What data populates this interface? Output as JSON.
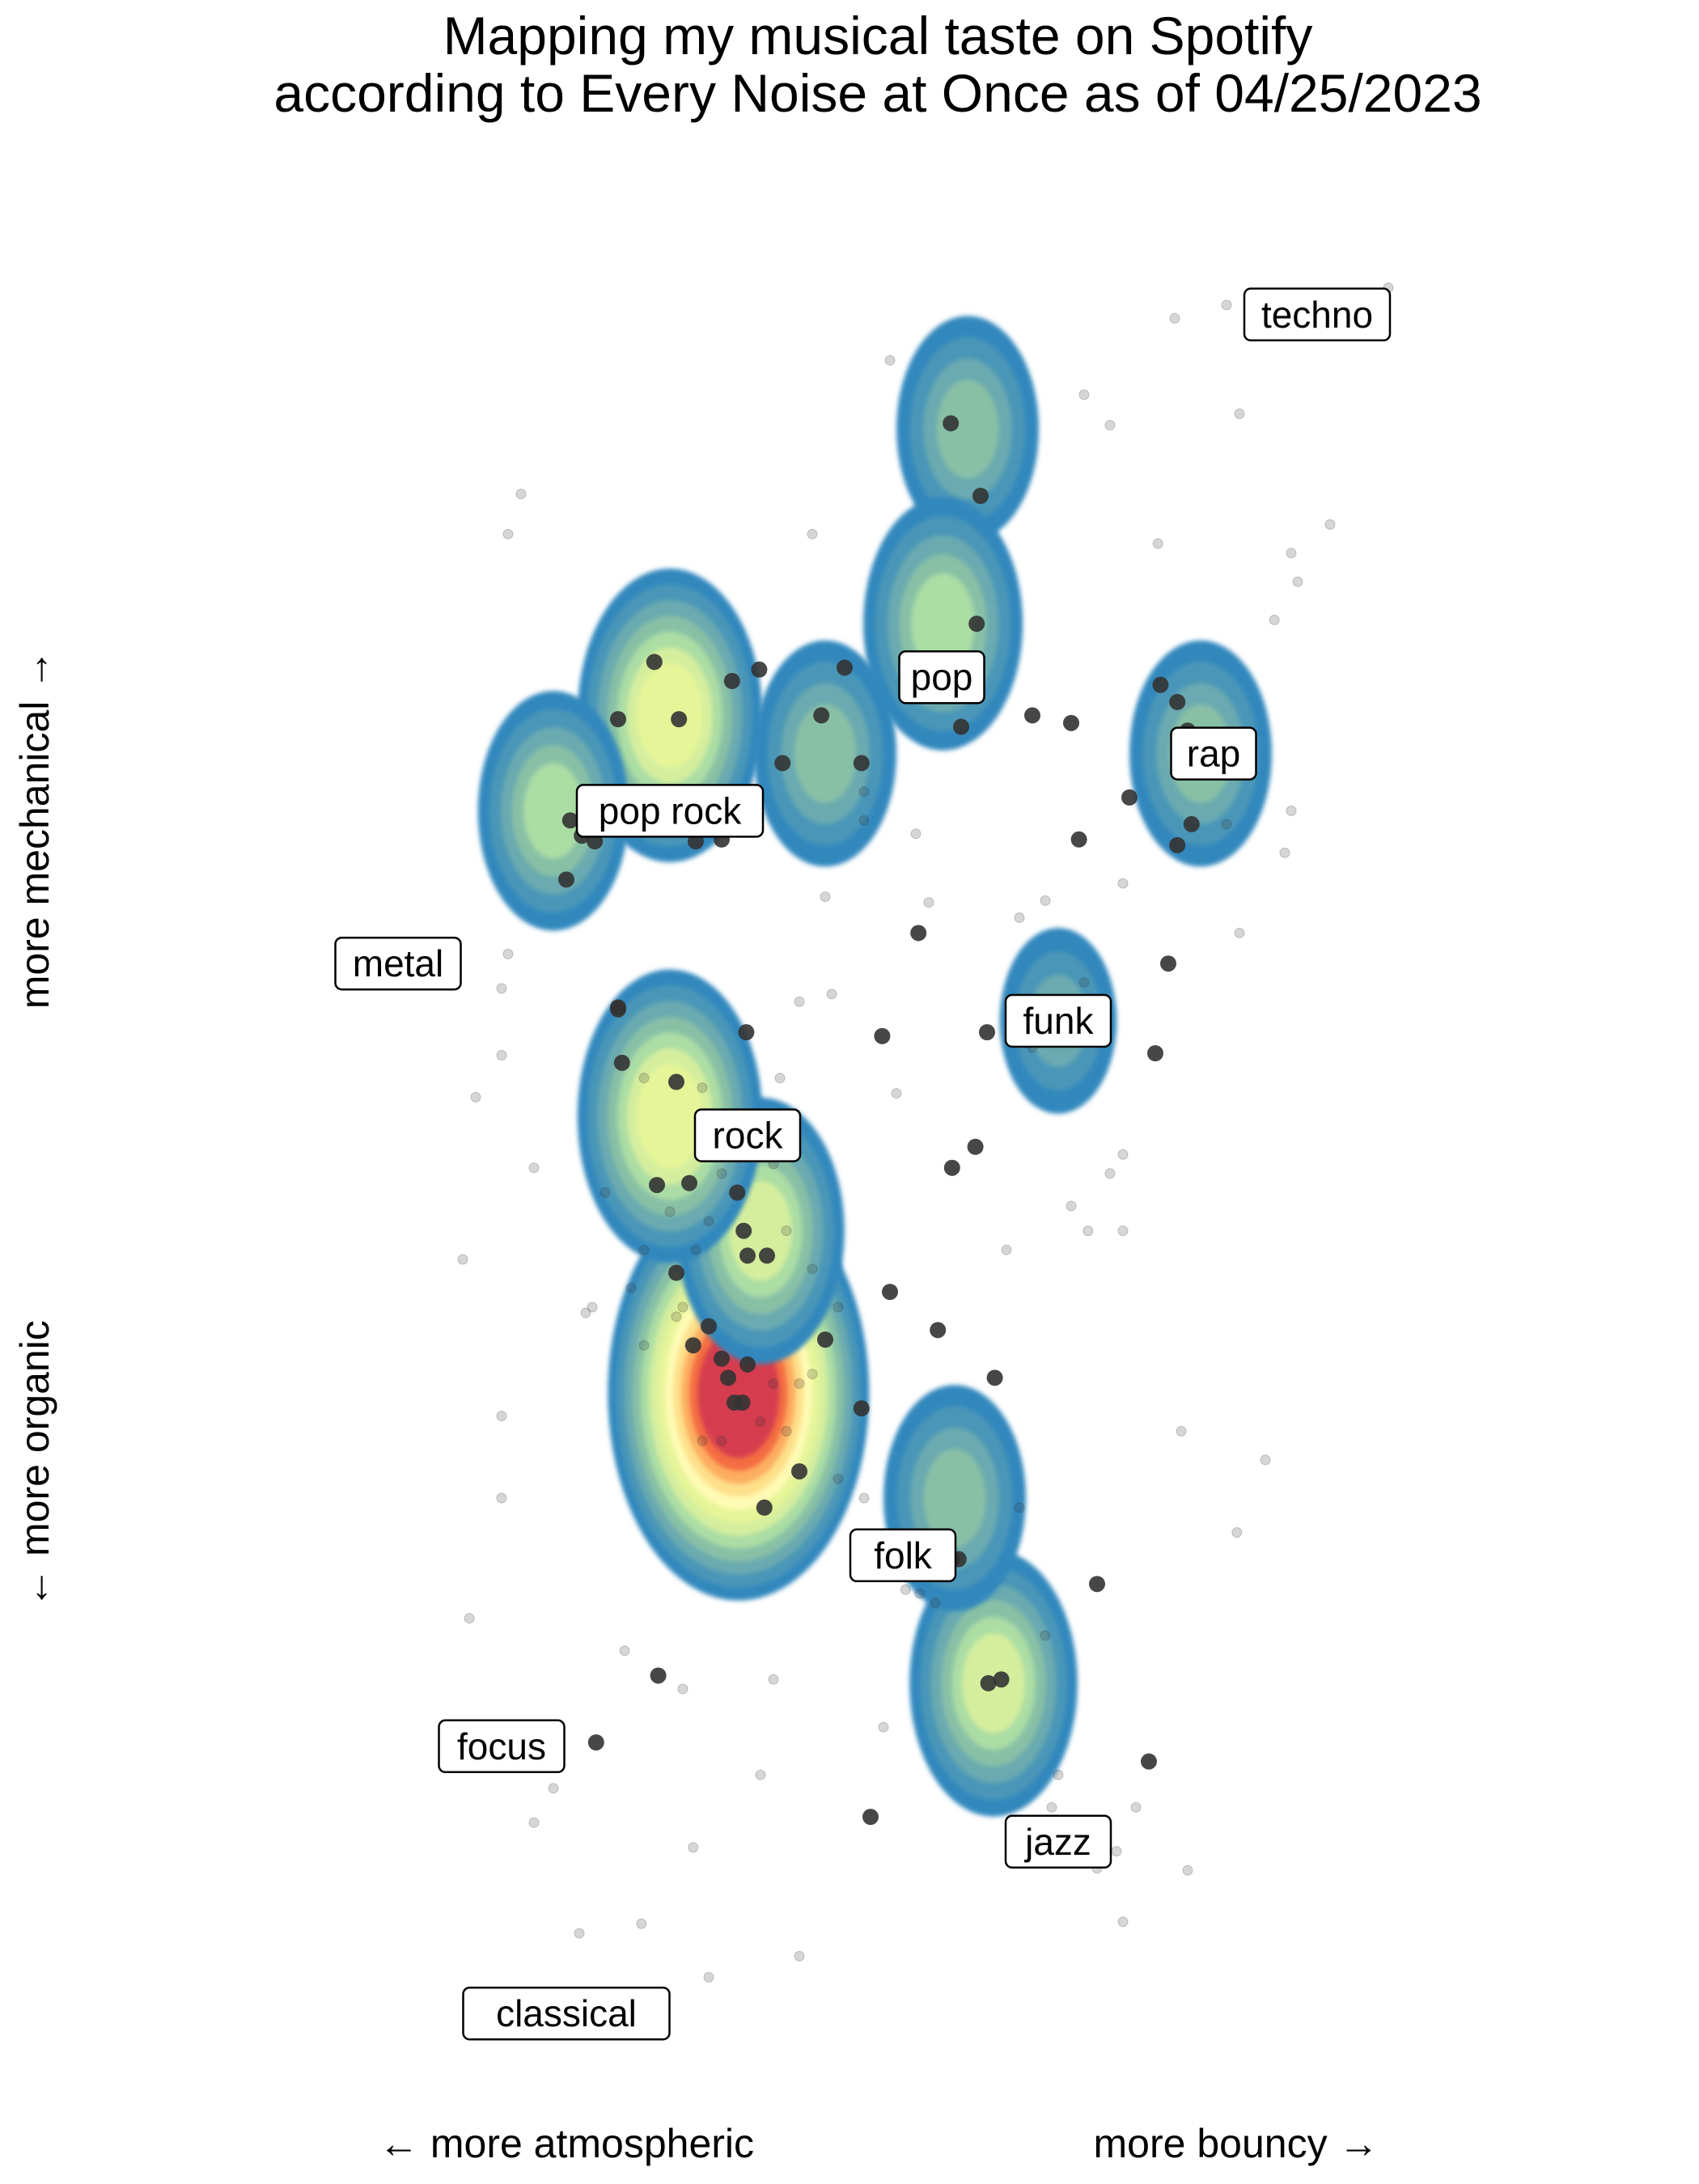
{
  "chart_data": {
    "type": "scatter",
    "subtype": "2d-density-contour-with-points",
    "title": [
      "Mapping my musical taste on Spotify",
      "according to Every Noise at Once as of 04/25/2023"
    ],
    "xlabel": {
      "left": "← more atmospheric",
      "right": "more bouncy →"
    },
    "ylabel": {
      "bottom": "← more organic",
      "top": "more mechanical →"
    },
    "xlim": [
      0,
      1
    ],
    "ylim": [
      0,
      1
    ],
    "grid": false,
    "legend": "none",
    "density_palette": [
      "#3288bd",
      "#4a96b8",
      "#6aaab0",
      "#88c0a6",
      "#abdda4",
      "#d5ee9e",
      "#e6f598",
      "#fffbb5",
      "#fee08b",
      "#fdae61",
      "#f46d43",
      "#d53e4f"
    ],
    "genre_labels": [
      {
        "label": "techno",
        "x": 0.83,
        "y": 0.92
      },
      {
        "label": "pop",
        "x": 0.54,
        "y": 0.73
      },
      {
        "label": "rap",
        "x": 0.75,
        "y": 0.69
      },
      {
        "label": "pop rock",
        "x": 0.33,
        "y": 0.66
      },
      {
        "label": "metal",
        "x": 0.12,
        "y": 0.58
      },
      {
        "label": "funk",
        "x": 0.63,
        "y": 0.55
      },
      {
        "label": "rock",
        "x": 0.39,
        "y": 0.49
      },
      {
        "label": "folk",
        "x": 0.51,
        "y": 0.27
      },
      {
        "label": "focus",
        "x": 0.2,
        "y": 0.17
      },
      {
        "label": "jazz",
        "x": 0.63,
        "y": 0.12
      },
      {
        "label": "classical",
        "x": 0.25,
        "y": 0.03
      }
    ],
    "density_peaks": [
      {
        "x": 0.383,
        "y": 0.355,
        "weight": 1.0
      },
      {
        "x": 0.4,
        "y": 0.44,
        "weight": 0.45
      },
      {
        "x": 0.33,
        "y": 0.5,
        "weight": 0.55
      },
      {
        "x": 0.33,
        "y": 0.71,
        "weight": 0.55
      },
      {
        "x": 0.24,
        "y": 0.66,
        "weight": 0.35
      },
      {
        "x": 0.45,
        "y": 0.69,
        "weight": 0.3
      },
      {
        "x": 0.56,
        "y": 0.86,
        "weight": 0.3
      },
      {
        "x": 0.541,
        "y": 0.758,
        "weight": 0.4
      },
      {
        "x": 0.58,
        "y": 0.203,
        "weight": 0.45
      },
      {
        "x": 0.55,
        "y": 0.3,
        "weight": 0.3
      },
      {
        "x": 0.74,
        "y": 0.69,
        "weight": 0.3
      },
      {
        "x": 0.63,
        "y": 0.55,
        "weight": 0.15
      }
    ],
    "points_dark": [
      {
        "x": 0.318,
        "y": 0.738
      },
      {
        "x": 0.337,
        "y": 0.708
      },
      {
        "x": 0.29,
        "y": 0.708
      },
      {
        "x": 0.378,
        "y": 0.728
      },
      {
        "x": 0.399,
        "y": 0.734
      },
      {
        "x": 0.465,
        "y": 0.735
      },
      {
        "x": 0.447,
        "y": 0.71
      },
      {
        "x": 0.417,
        "y": 0.685
      },
      {
        "x": 0.478,
        "y": 0.685
      },
      {
        "x": 0.57,
        "y": 0.825
      },
      {
        "x": 0.547,
        "y": 0.863
      },
      {
        "x": 0.567,
        "y": 0.758
      },
      {
        "x": 0.555,
        "y": 0.704
      },
      {
        "x": 0.61,
        "y": 0.71
      },
      {
        "x": 0.64,
        "y": 0.706
      },
      {
        "x": 0.709,
        "y": 0.726
      },
      {
        "x": 0.722,
        "y": 0.717
      },
      {
        "x": 0.73,
        "y": 0.702
      },
      {
        "x": 0.733,
        "y": 0.653
      },
      {
        "x": 0.722,
        "y": 0.642
      },
      {
        "x": 0.646,
        "y": 0.645
      },
      {
        "x": 0.685,
        "y": 0.667
      },
      {
        "x": 0.253,
        "y": 0.655
      },
      {
        "x": 0.262,
        "y": 0.647
      },
      {
        "x": 0.272,
        "y": 0.644
      },
      {
        "x": 0.25,
        "y": 0.624
      },
      {
        "x": 0.35,
        "y": 0.644
      },
      {
        "x": 0.37,
        "y": 0.645
      },
      {
        "x": 0.522,
        "y": 0.596
      },
      {
        "x": 0.575,
        "y": 0.544
      },
      {
        "x": 0.494,
        "y": 0.542
      },
      {
        "x": 0.705,
        "y": 0.533
      },
      {
        "x": 0.29,
        "y": 0.557
      },
      {
        "x": 0.29,
        "y": 0.556
      },
      {
        "x": 0.293,
        "y": 0.528
      },
      {
        "x": 0.335,
        "y": 0.518
      },
      {
        "x": 0.389,
        "y": 0.544
      },
      {
        "x": 0.32,
        "y": 0.464
      },
      {
        "x": 0.345,
        "y": 0.465
      },
      {
        "x": 0.382,
        "y": 0.46
      },
      {
        "x": 0.387,
        "y": 0.44
      },
      {
        "x": 0.39,
        "y": 0.427
      },
      {
        "x": 0.405,
        "y": 0.427
      },
      {
        "x": 0.335,
        "y": 0.418
      },
      {
        "x": 0.36,
        "y": 0.39
      },
      {
        "x": 0.37,
        "y": 0.373
      },
      {
        "x": 0.348,
        "y": 0.38
      },
      {
        "x": 0.375,
        "y": 0.363
      },
      {
        "x": 0.38,
        "y": 0.35
      },
      {
        "x": 0.386,
        "y": 0.35
      },
      {
        "x": 0.39,
        "y": 0.37
      },
      {
        "x": 0.45,
        "y": 0.383
      },
      {
        "x": 0.478,
        "y": 0.347
      },
      {
        "x": 0.5,
        "y": 0.408
      },
      {
        "x": 0.43,
        "y": 0.314
      },
      {
        "x": 0.403,
        "y": 0.295
      },
      {
        "x": 0.548,
        "y": 0.268
      },
      {
        "x": 0.553,
        "y": 0.268
      },
      {
        "x": 0.576,
        "y": 0.203
      },
      {
        "x": 0.586,
        "y": 0.205
      },
      {
        "x": 0.537,
        "y": 0.388
      },
      {
        "x": 0.581,
        "y": 0.363
      },
      {
        "x": 0.548,
        "y": 0.473
      },
      {
        "x": 0.566,
        "y": 0.484
      },
      {
        "x": 0.715,
        "y": 0.58
      },
      {
        "x": 0.273,
        "y": 0.172
      },
      {
        "x": 0.321,
        "y": 0.207
      },
      {
        "x": 0.485,
        "y": 0.133
      },
      {
        "x": 0.66,
        "y": 0.255
      },
      {
        "x": 0.7,
        "y": 0.162
      }
    ],
    "points_light": [
      {
        "x": 0.76,
        "y": 0.925
      },
      {
        "x": 0.885,
        "y": 0.934
      },
      {
        "x": 0.72,
        "y": 0.918
      },
      {
        "x": 0.84,
        "y": 0.81
      },
      {
        "x": 0.815,
        "y": 0.78
      },
      {
        "x": 0.797,
        "y": 0.76
      },
      {
        "x": 0.81,
        "y": 0.795
      },
      {
        "x": 0.707,
        "y": 0.8
      },
      {
        "x": 0.215,
        "y": 0.826
      },
      {
        "x": 0.44,
        "y": 0.805
      },
      {
        "x": 0.5,
        "y": 0.896
      },
      {
        "x": 0.65,
        "y": 0.878
      },
      {
        "x": 0.67,
        "y": 0.862
      },
      {
        "x": 0.77,
        "y": 0.868
      },
      {
        "x": 0.205,
        "y": 0.805
      },
      {
        "x": 0.2,
        "y": 0.567
      },
      {
        "x": 0.205,
        "y": 0.585
      },
      {
        "x": 0.2,
        "y": 0.532
      },
      {
        "x": 0.18,
        "y": 0.51
      },
      {
        "x": 0.225,
        "y": 0.473
      },
      {
        "x": 0.17,
        "y": 0.425
      },
      {
        "x": 0.2,
        "y": 0.343
      },
      {
        "x": 0.265,
        "y": 0.397
      },
      {
        "x": 0.27,
        "y": 0.4
      },
      {
        "x": 0.31,
        "y": 0.38
      },
      {
        "x": 0.3,
        "y": 0.41
      },
      {
        "x": 0.34,
        "y": 0.4
      },
      {
        "x": 0.355,
        "y": 0.33
      },
      {
        "x": 0.37,
        "y": 0.33
      },
      {
        "x": 0.42,
        "y": 0.335
      },
      {
        "x": 0.46,
        "y": 0.31
      },
      {
        "x": 0.48,
        "y": 0.3
      },
      {
        "x": 0.5,
        "y": 0.275
      },
      {
        "x": 0.512,
        "y": 0.252
      },
      {
        "x": 0.523,
        "y": 0.25
      },
      {
        "x": 0.535,
        "y": 0.245
      },
      {
        "x": 0.6,
        "y": 0.295
      },
      {
        "x": 0.62,
        "y": 0.228
      },
      {
        "x": 0.63,
        "y": 0.155
      },
      {
        "x": 0.65,
        "y": 0.125
      },
      {
        "x": 0.66,
        "y": 0.106
      },
      {
        "x": 0.675,
        "y": 0.115
      },
      {
        "x": 0.69,
        "y": 0.138
      },
      {
        "x": 0.73,
        "y": 0.105
      },
      {
        "x": 0.725,
        "y": 0.335
      },
      {
        "x": 0.768,
        "y": 0.282
      },
      {
        "x": 0.79,
        "y": 0.32
      },
      {
        "x": 0.67,
        "y": 0.47
      },
      {
        "x": 0.64,
        "y": 0.453
      },
      {
        "x": 0.653,
        "y": 0.44
      },
      {
        "x": 0.68,
        "y": 0.44
      },
      {
        "x": 0.59,
        "y": 0.43
      },
      {
        "x": 0.2,
        "y": 0.3
      },
      {
        "x": 0.175,
        "y": 0.237
      },
      {
        "x": 0.295,
        "y": 0.22
      },
      {
        "x": 0.34,
        "y": 0.2
      },
      {
        "x": 0.41,
        "y": 0.205
      },
      {
        "x": 0.24,
        "y": 0.148
      },
      {
        "x": 0.225,
        "y": 0.13
      },
      {
        "x": 0.26,
        "y": 0.072
      },
      {
        "x": 0.308,
        "y": 0.077
      },
      {
        "x": 0.348,
        "y": 0.117
      },
      {
        "x": 0.4,
        "y": 0.155
      },
      {
        "x": 0.36,
        "y": 0.049
      },
      {
        "x": 0.43,
        "y": 0.06
      },
      {
        "x": 0.68,
        "y": 0.078
      },
      {
        "x": 0.625,
        "y": 0.138
      },
      {
        "x": 0.495,
        "y": 0.18
      },
      {
        "x": 0.48,
        "y": 0.67
      },
      {
        "x": 0.48,
        "y": 0.655
      },
      {
        "x": 0.52,
        "y": 0.648
      },
      {
        "x": 0.53,
        "y": 0.612
      },
      {
        "x": 0.45,
        "y": 0.615
      },
      {
        "x": 0.455,
        "y": 0.564
      },
      {
        "x": 0.68,
        "y": 0.622
      },
      {
        "x": 0.62,
        "y": 0.613
      },
      {
        "x": 0.6,
        "y": 0.604
      },
      {
        "x": 0.77,
        "y": 0.596
      },
      {
        "x": 0.76,
        "y": 0.653
      },
      {
        "x": 0.61,
        "y": 0.536
      },
      {
        "x": 0.65,
        "y": 0.57
      },
      {
        "x": 0.68,
        "y": 0.48
      },
      {
        "x": 0.81,
        "y": 0.66
      },
      {
        "x": 0.805,
        "y": 0.638
      },
      {
        "x": 0.505,
        "y": 0.512
      },
      {
        "x": 0.28,
        "y": 0.46
      },
      {
        "x": 0.43,
        "y": 0.56
      },
      {
        "x": 0.415,
        "y": 0.52
      },
      {
        "x": 0.31,
        "y": 0.52
      },
      {
        "x": 0.355,
        "y": 0.515
      },
      {
        "x": 0.36,
        "y": 0.495
      },
      {
        "x": 0.37,
        "y": 0.47
      },
      {
        "x": 0.41,
        "y": 0.475
      },
      {
        "x": 0.42,
        "y": 0.44
      },
      {
        "x": 0.44,
        "y": 0.42
      },
      {
        "x": 0.46,
        "y": 0.4
      },
      {
        "x": 0.44,
        "y": 0.365
      },
      {
        "x": 0.41,
        "y": 0.36
      },
      {
        "x": 0.4,
        "y": 0.34
      },
      {
        "x": 0.43,
        "y": 0.36
      },
      {
        "x": 0.33,
        "y": 0.45
      },
      {
        "x": 0.35,
        "y": 0.43
      },
      {
        "x": 0.31,
        "y": 0.43
      },
      {
        "x": 0.36,
        "y": 0.445
      },
      {
        "x": 0.335,
        "y": 0.395
      }
    ]
  }
}
